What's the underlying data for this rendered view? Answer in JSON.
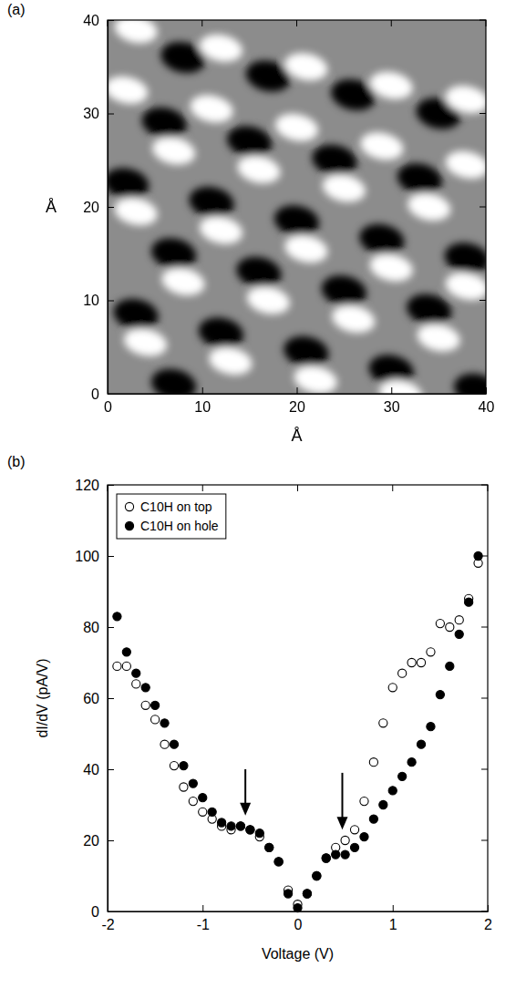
{
  "chart_data": [
    {
      "type": "image",
      "title": "(a)",
      "xlabel": "Å",
      "ylabel": "Å",
      "xlim": [
        0,
        40
      ],
      "ylim": [
        0,
        40
      ],
      "xticks": [
        0,
        10,
        20,
        30,
        40
      ],
      "yticks": [
        0,
        10,
        20,
        30,
        40
      ],
      "grid": false,
      "bright_spots": {
        "x": [
          3,
          12,
          21,
          30,
          38,
          2,
          11,
          20,
          29,
          38,
          7,
          16,
          25,
          34,
          3,
          12,
          21,
          30,
          38,
          8,
          17,
          26,
          35,
          4,
          13,
          22,
          31
        ],
        "y": [
          39,
          37,
          35,
          33,
          31.5,
          32.5,
          30.5,
          28.5,
          26.5,
          24.5,
          26,
          24,
          22,
          20,
          19.5,
          17.5,
          15.5,
          13.5,
          11.5,
          12,
          10,
          8,
          6,
          5.5,
          3.5,
          1.5,
          0
        ]
      },
      "dark_spots": {
        "x": [
          8,
          17,
          26,
          35,
          6,
          15,
          24,
          33,
          2,
          11,
          20,
          29,
          38,
          7,
          16,
          25,
          34,
          3,
          12,
          21,
          30,
          39,
          7
        ],
        "y": [
          36,
          34,
          32,
          30,
          29,
          27,
          25,
          23,
          22.5,
          20.5,
          18.5,
          16.5,
          14.5,
          15,
          13,
          11,
          9,
          8.5,
          6.5,
          4.5,
          2.5,
          0.5,
          1
        ]
      }
    },
    {
      "type": "scatter",
      "title": "(b)",
      "xlabel": "Voltage (V)",
      "ylabel": "dI/dV (pA/V)",
      "xlim": [
        -2,
        2
      ],
      "ylim": [
        0,
        120
      ],
      "xticks": [
        -2,
        -1,
        0,
        1,
        2
      ],
      "yticks": [
        0,
        20,
        40,
        60,
        80,
        100,
        120
      ],
      "grid": false,
      "legend": "upper left",
      "x": [
        -1.9,
        -1.8,
        -1.7,
        -1.6,
        -1.5,
        -1.4,
        -1.3,
        -1.2,
        -1.1,
        -1.0,
        -0.9,
        -0.8,
        -0.7,
        -0.6,
        -0.5,
        -0.4,
        -0.3,
        -0.2,
        -0.1,
        0,
        0.1,
        0.2,
        0.3,
        0.4,
        0.5,
        0.6,
        0.7,
        0.8,
        0.9,
        1.0,
        1.1,
        1.2,
        1.3,
        1.4,
        1.5,
        1.6,
        1.7,
        1.8,
        1.9
      ],
      "series": [
        {
          "name": "C10H on top",
          "color": "#000000",
          "marker": "circle-open",
          "values": [
            69,
            69,
            64,
            58,
            54,
            47,
            41,
            35,
            31,
            28,
            26,
            24,
            23,
            24,
            23,
            21,
            18,
            14,
            6,
            2,
            5,
            10,
            15,
            18,
            20,
            23,
            31,
            42,
            53,
            63,
            67,
            70,
            70,
            73,
            81,
            80,
            82,
            88,
            98
          ]
        },
        {
          "name": "C10H on hole",
          "color": "#000000",
          "marker": "circle",
          "values": [
            83,
            73,
            67,
            63,
            58,
            53,
            47,
            41,
            36,
            32,
            28,
            25,
            24,
            24,
            23,
            22,
            18,
            14,
            5,
            1,
            5,
            10,
            15,
            16,
            16,
            18,
            21,
            26,
            30,
            34,
            38,
            42,
            47,
            52,
            61,
            69,
            78,
            87,
            100
          ]
        }
      ],
      "arrows": [
        {
          "x": -0.55,
          "y_start": 40,
          "y_end": 27
        },
        {
          "x": 0.47,
          "y_start": 39,
          "y_end": 23
        }
      ]
    }
  ]
}
